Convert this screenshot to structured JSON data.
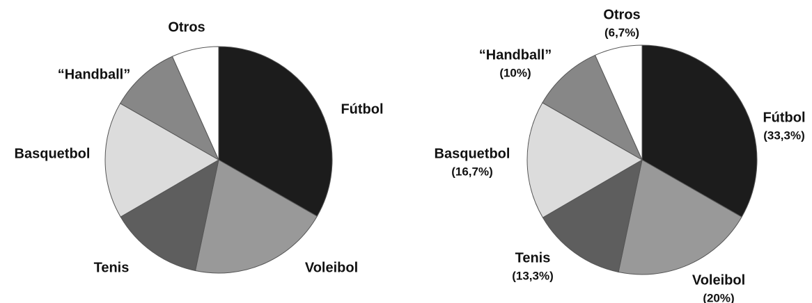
{
  "chart_data": [
    {
      "type": "pie",
      "categories": [
        "Fútbol",
        "Voleibol",
        "Tenis",
        "Basquetbol",
        "“Handball”",
        "Otros"
      ],
      "values": [
        33.3,
        20,
        13.3,
        16.7,
        10,
        6.7
      ],
      "colors": [
        "#1c1c1c",
        "#999999",
        "#5e5e5e",
        "#dcdcdc",
        "#878787",
        "#ffffff"
      ]
    },
    {
      "type": "pie",
      "categories": [
        "Fútbol",
        "Voleibol",
        "Tenis",
        "Basquetbol",
        "“Handball”",
        "Otros"
      ],
      "values": [
        33.3,
        20,
        13.3,
        16.7,
        10,
        6.7
      ],
      "value_labels": [
        "(33,3%)",
        "(20%)",
        "(13,3%)",
        "(16,7%)",
        "(10%)",
        "(6,7%)"
      ],
      "colors": [
        "#1c1c1c",
        "#999999",
        "#5e5e5e",
        "#dcdcdc",
        "#878787",
        "#ffffff"
      ]
    }
  ]
}
